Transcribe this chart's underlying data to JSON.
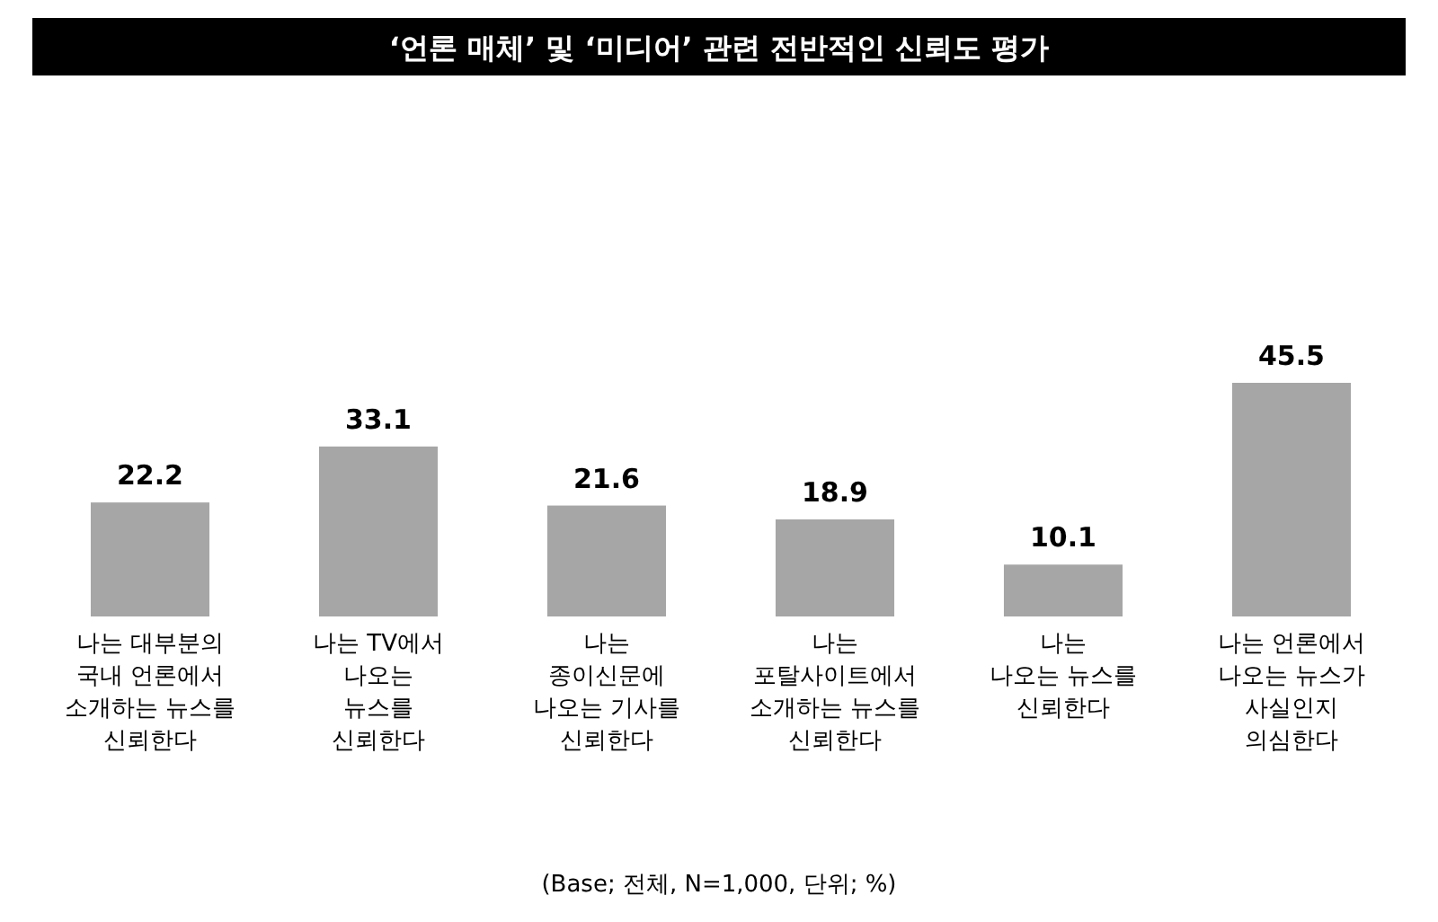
{
  "chart_data": {
    "type": "bar",
    "title": "‘언론 매체’ 및 ‘미디어’ 관련 전반적인 신뢰도 평가",
    "categories": [
      "나는 대부분의\n국내 언론에서\n소개하는 뉴스를\n신뢰한다",
      "나는 TV에서\n나오는\n뉴스를\n신뢰한다",
      "나는\n종이신문에\n나오는 기사를\n신뢰한다",
      "나는\n포탈사이트에서\n소개하는 뉴스를\n신뢰한다",
      "나는\n나오는 뉴스를\n신뢰한다",
      "나는 언론에서\n나오는 뉴스가\n사실인지\n의심한다"
    ],
    "values": [
      22.2,
      33.1,
      21.6,
      18.9,
      10.1,
      45.5
    ],
    "color": "#a6a6a6",
    "data_labels": true,
    "annotations": [
      "(Base; 전체, N=1,000, 단위; %)"
    ]
  }
}
